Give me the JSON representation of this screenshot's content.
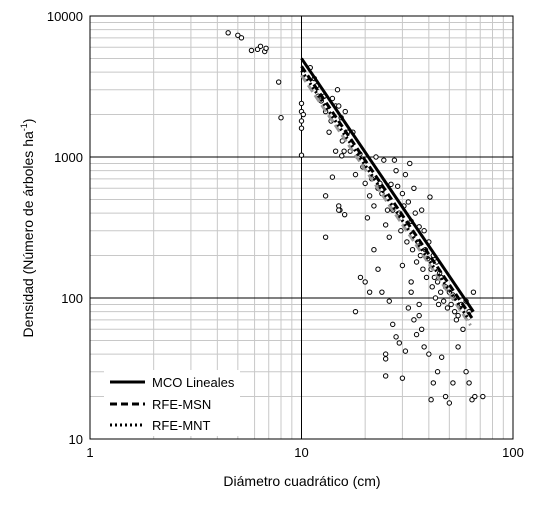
{
  "chart_data": {
    "type": "scatter",
    "xscale": "log",
    "yscale": "log",
    "xlim": [
      1,
      100
    ],
    "ylim": [
      10,
      10000
    ],
    "grid": true,
    "xticks": [
      "1",
      "10",
      "100"
    ],
    "yticks": [
      "10",
      "100",
      "1000",
      "10000"
    ],
    "xlabel": "Diámetro cuadrático (cm)",
    "ylabel_main": "Densidad (Número de árboles ha",
    "ylabel_sup": "-1",
    "ylabel_end": ")",
    "legend_position": "bottom-left",
    "points": [
      [
        4.5,
        7600
      ],
      [
        5.0,
        7300
      ],
      [
        5.2,
        7000
      ],
      [
        5.8,
        5700
      ],
      [
        6.2,
        5800
      ],
      [
        6.4,
        6100
      ],
      [
        6.7,
        5600
      ],
      [
        6.8,
        5900
      ],
      [
        7.8,
        3400
      ],
      [
        8.0,
        1900
      ],
      [
        10.0,
        2400
      ],
      [
        10.0,
        2100
      ],
      [
        10.0,
        1800
      ],
      [
        10.0,
        1600
      ],
      [
        10.0,
        1030
      ],
      [
        10.2,
        2000
      ],
      [
        11.0,
        4300
      ],
      [
        11.5,
        3600
      ],
      [
        11.8,
        3200
      ],
      [
        12.0,
        2700
      ],
      [
        12.4,
        2500
      ],
      [
        12.8,
        2700
      ],
      [
        13.0,
        2100
      ],
      [
        13.5,
        1500
      ],
      [
        13.8,
        1800
      ],
      [
        14.0,
        2600
      ],
      [
        14.5,
        2300
      ],
      [
        14.8,
        3000
      ],
      [
        15.0,
        2300
      ],
      [
        15.4,
        1900
      ],
      [
        15.6,
        1300
      ],
      [
        15.9,
        1100
      ],
      [
        16.1,
        2100
      ],
      [
        16.5,
        1500
      ],
      [
        14.5,
        1100
      ],
      [
        15.0,
        450
      ],
      [
        15.2,
        420
      ],
      [
        13.0,
        530
      ],
      [
        14.0,
        720
      ],
      [
        13.0,
        270
      ],
      [
        15.0,
        420
      ],
      [
        16.0,
        390
      ],
      [
        15.5,
        1020
      ],
      [
        17.0,
        1100
      ],
      [
        17.5,
        1500
      ],
      [
        18.0,
        750
      ],
      [
        18.5,
        1000
      ],
      [
        18.9,
        1050
      ],
      [
        19.5,
        850
      ],
      [
        20.0,
        650
      ],
      [
        20.5,
        370
      ],
      [
        21.0,
        530
      ],
      [
        21.5,
        700
      ],
      [
        22.0,
        450
      ],
      [
        22.5,
        1000
      ],
      [
        23.0,
        600
      ],
      [
        23.5,
        650
      ],
      [
        24.0,
        550
      ],
      [
        24.5,
        950
      ],
      [
        25.0,
        330
      ],
      [
        25.5,
        420
      ],
      [
        26.0,
        270
      ],
      [
        26.5,
        640
      ],
      [
        27.0,
        420
      ],
      [
        27.5,
        950
      ],
      [
        28.0,
        800
      ],
      [
        28.5,
        620
      ],
      [
        29.0,
        400
      ],
      [
        29.5,
        300
      ],
      [
        30.0,
        550
      ],
      [
        30.5,
        450
      ],
      [
        31.0,
        750
      ],
      [
        31.5,
        250
      ],
      [
        32.0,
        480
      ],
      [
        32.5,
        900
      ],
      [
        33.0,
        350
      ],
      [
        33.5,
        220
      ],
      [
        34.0,
        600
      ],
      [
        34.5,
        400
      ],
      [
        35.0,
        180
      ],
      [
        35.5,
        250
      ],
      [
        36.0,
        320
      ],
      [
        36.5,
        200
      ],
      [
        37.0,
        420
      ],
      [
        37.5,
        160
      ],
      [
        38.0,
        300
      ],
      [
        38.5,
        220
      ],
      [
        39.0,
        140
      ],
      [
        39.5,
        190
      ],
      [
        40.0,
        250
      ],
      [
        40.5,
        520
      ],
      [
        41.0,
        160
      ],
      [
        41.5,
        120
      ],
      [
        42.0,
        200
      ],
      [
        42.5,
        140
      ],
      [
        43.0,
        100
      ],
      [
        43.5,
        180
      ],
      [
        44.0,
        130
      ],
      [
        44.5,
        90
      ],
      [
        45.0,
        150
      ],
      [
        45.5,
        110
      ],
      [
        46.0,
        140
      ],
      [
        47.0,
        95
      ],
      [
        48.0,
        120
      ],
      [
        49.0,
        85
      ],
      [
        50.0,
        110
      ],
      [
        51.0,
        90
      ],
      [
        52.0,
        105
      ],
      [
        53.0,
        80
      ],
      [
        54.0,
        70
      ],
      [
        55.0,
        75
      ],
      [
        57.0,
        90
      ],
      [
        58.0,
        60
      ],
      [
        60.0,
        95
      ],
      [
        62.0,
        80
      ],
      [
        65.0,
        110
      ],
      [
        20.0,
        130
      ],
      [
        21.0,
        110
      ],
      [
        22.0,
        220
      ],
      [
        23.0,
        160
      ],
      [
        24.0,
        110
      ],
      [
        25.0,
        40
      ],
      [
        25.0,
        37
      ],
      [
        25.0,
        28
      ],
      [
        27.0,
        65
      ],
      [
        28.0,
        53
      ],
      [
        29.0,
        48
      ],
      [
        30.0,
        27
      ],
      [
        31.0,
        42
      ],
      [
        32.0,
        85
      ],
      [
        33.0,
        110
      ],
      [
        34.0,
        70
      ],
      [
        35.0,
        55
      ],
      [
        36.0,
        90
      ],
      [
        37.0,
        60
      ],
      [
        38.0,
        45
      ],
      [
        40.0,
        40
      ],
      [
        41.0,
        19
      ],
      [
        42.0,
        25
      ],
      [
        44.0,
        30
      ],
      [
        46.0,
        38
      ],
      [
        48.0,
        20
      ],
      [
        50.0,
        18
      ],
      [
        52.0,
        25
      ],
      [
        55.0,
        45
      ],
      [
        60.0,
        30
      ],
      [
        62.0,
        25
      ],
      [
        64.0,
        19
      ],
      [
        66.0,
        20
      ],
      [
        72.0,
        20
      ],
      [
        18.0,
        80
      ],
      [
        19.0,
        140
      ],
      [
        26.0,
        95
      ],
      [
        30.0,
        170
      ],
      [
        33.0,
        130
      ],
      [
        36.0,
        75
      ]
    ],
    "series": [
      {
        "name": "MCO Lineales",
        "style": "solid",
        "color": "#000000",
        "x": [
          10,
          65
        ],
        "y": [
          5000,
          80
        ]
      },
      {
        "name": "RFE-MSN",
        "style": "dashed",
        "color": "#000000",
        "x": [
          10,
          64
        ],
        "y": [
          4400,
          72
        ]
      },
      {
        "name": "RFE-MNT",
        "style": "dotted",
        "color": "#000000",
        "x": [
          10,
          62
        ],
        "y": [
          4100,
          70
        ]
      },
      {
        "name": "",
        "style": "dashed-gray",
        "color": "#999999",
        "x": [
          10,
          63
        ],
        "y": [
          3800,
          64
        ]
      }
    ]
  }
}
